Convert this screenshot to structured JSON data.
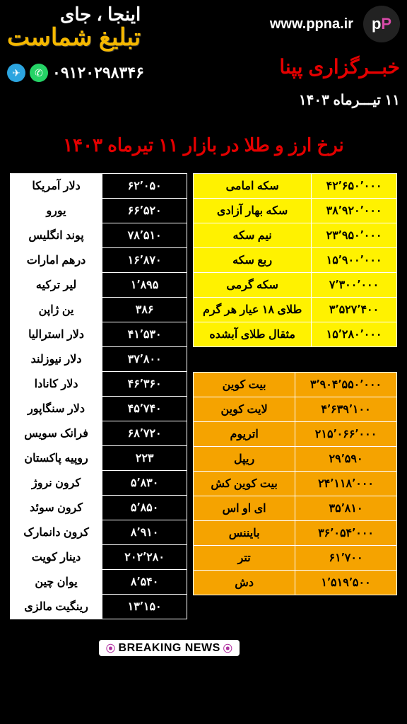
{
  "header": {
    "url": "www.ppna.ir",
    "ad_line1": "اینجا ، جای",
    "ad_line2": "تبلیغ شماست",
    "agency": "خبــرگزاری پپنا",
    "phone": "۰۹۱۲۰۲۹۸۳۴۶",
    "date": "۱۱ تیـــرماه ۱۴۰۳"
  },
  "title": "نرخ ارز و طلا در بازار  ۱۱ تیرماه ۱۴۰۳",
  "currencies": [
    {
      "name": "دلار آمریکا",
      "val": "۶۲٬۰۵۰"
    },
    {
      "name": "یورو",
      "val": "۶۶٬۵۲۰"
    },
    {
      "name": "پوند انگلیس",
      "val": "۷۸٬۵۱۰"
    },
    {
      "name": "درهم امارات",
      "val": "۱۶٬۸۷۰"
    },
    {
      "name": "لیر ترکیه",
      "val": "۱٬۸۹۵"
    },
    {
      "name": "ین ژاپن",
      "val": "۳۸۶"
    },
    {
      "name": "دلار استرالیا",
      "val": "۴۱٬۵۳۰"
    },
    {
      "name": "دلار نیوزلند",
      "val": "۳۷٬۸۰۰"
    },
    {
      "name": "دلار کانادا",
      "val": "۴۶٬۳۶۰"
    },
    {
      "name": "دلار سنگاپور",
      "val": "۴۵٬۷۴۰"
    },
    {
      "name": "فرانک سویس",
      "val": "۶۸٬۷۲۰"
    },
    {
      "name": "روپیه پاکستان",
      "val": "۲۲۳"
    },
    {
      "name": "کرون نروژ",
      "val": "۵٬۸۳۰"
    },
    {
      "name": "کرون سوئد",
      "val": "۵٬۸۵۰"
    },
    {
      "name": "کرون دانمارک",
      "val": "۸٬۹۱۰"
    },
    {
      "name": "دینار کویت",
      "val": "۲۰۲٬۲۸۰"
    },
    {
      "name": "یوان چین",
      "val": "۸٬۵۴۰"
    },
    {
      "name": "رینگیت مالزی",
      "val": "۱۳٬۱۵۰"
    }
  ],
  "gold": [
    {
      "name": "سکه امامی",
      "val": "۴۲٬۶۵۰٬۰۰۰"
    },
    {
      "name": "سکه بهار آزادی",
      "val": "۳۸٬۹۲۰٬۰۰۰"
    },
    {
      "name": "نیم سکه",
      "val": "۲۳٬۹۵۰٬۰۰۰"
    },
    {
      "name": "ربع سکه",
      "val": "۱۵٬۹۰۰٬۰۰۰"
    },
    {
      "name": "سکه گرمی",
      "val": "۷٬۳۰۰٬۰۰۰"
    },
    {
      "name": "طلای ۱۸ عیار هر گرم",
      "val": "۳٬۵۲۷٬۴۰۰"
    },
    {
      "name": "مثقال طلای آبشده",
      "val": "۱۵٬۲۸۰٬۰۰۰"
    }
  ],
  "crypto": [
    {
      "name": "بیت کوین",
      "val": "۳٬۹۰۴٬۵۵۰٬۰۰۰"
    },
    {
      "name": "لایت کوین",
      "val": "۴٬۶۳۹٬۱۰۰"
    },
    {
      "name": "اتریوم",
      "val": "۲۱۵٬۰۶۶٬۰۰۰"
    },
    {
      "name": "ریپل",
      "val": "۲۹٬۵۹۰"
    },
    {
      "name": "بیت کوین کش",
      "val": "۲۴٬۱۱۸٬۰۰۰"
    },
    {
      "name": "ای او اس",
      "val": "۳۵٬۸۱۰"
    },
    {
      "name": "بایننس",
      "val": "۳۶٬۰۵۴٬۰۰۰"
    },
    {
      "name": "تتر",
      "val": "۶۱٬۷۰۰"
    },
    {
      "name": "دش",
      "val": "۱٬۵۱۹٬۵۰۰"
    }
  ],
  "breaking": "BREAKING NEWS",
  "colors": {
    "bg": "#000000",
    "title": "#e40000",
    "agency": "#e40000",
    "gold_bg": "#fff200",
    "crypto_bg": "#f5a300",
    "white": "#ffffff",
    "ad_yellow": "#f5b800"
  }
}
